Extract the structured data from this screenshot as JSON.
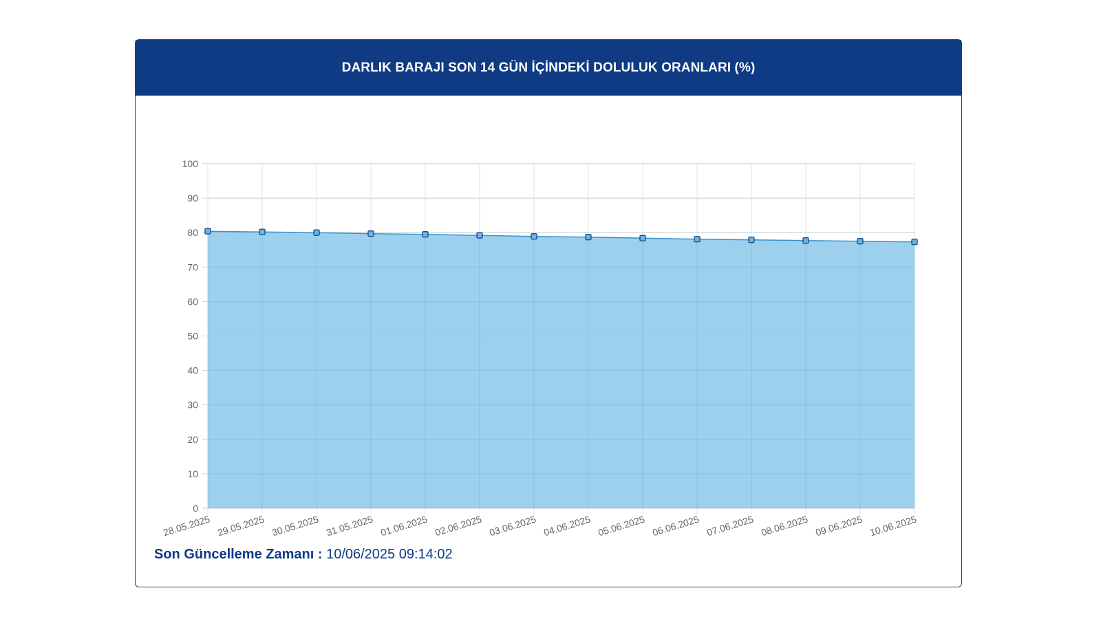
{
  "card": {
    "title": "DARLIK BARAJI SON 14 GÜN İÇİNDEKİ DOLULUK ORANLARI (%)"
  },
  "footer": {
    "label": "Son Güncelleme Zamanı :",
    "value": "10/06/2025 09:14:02"
  },
  "colors": {
    "header_bg": "#0f3a84",
    "area_fill": "#9dd0ec",
    "line": "#3a93c9",
    "marker_fill": "#6fb3e0",
    "marker_stroke": "#1d4f8f"
  },
  "chart_data": {
    "type": "area",
    "title": "DARLIK BARAJI SON 14 GÜN İÇİNDEKİ DOLULUK ORANLARI (%)",
    "categories": [
      "28.05.2025",
      "29.05.2025",
      "30.05.2025",
      "31.05.2025",
      "01.06.2025",
      "02.06.2025",
      "03.06.2025",
      "04.06.2025",
      "05.06.2025",
      "06.06.2025",
      "07.06.2025",
      "08.06.2025",
      "09.06.2025",
      "10.06.2025"
    ],
    "series": [
      {
        "values": [
          80.4,
          80.2,
          80.0,
          79.7,
          79.5,
          79.2,
          78.9,
          78.7,
          78.4,
          78.1,
          77.9,
          77.7,
          77.5,
          77.3
        ]
      }
    ],
    "ylim": [
      0,
      100
    ],
    "yticks": [
      0,
      10,
      20,
      30,
      40,
      50,
      60,
      70,
      80,
      90,
      100
    ],
    "grid": true,
    "legend": "none"
  }
}
